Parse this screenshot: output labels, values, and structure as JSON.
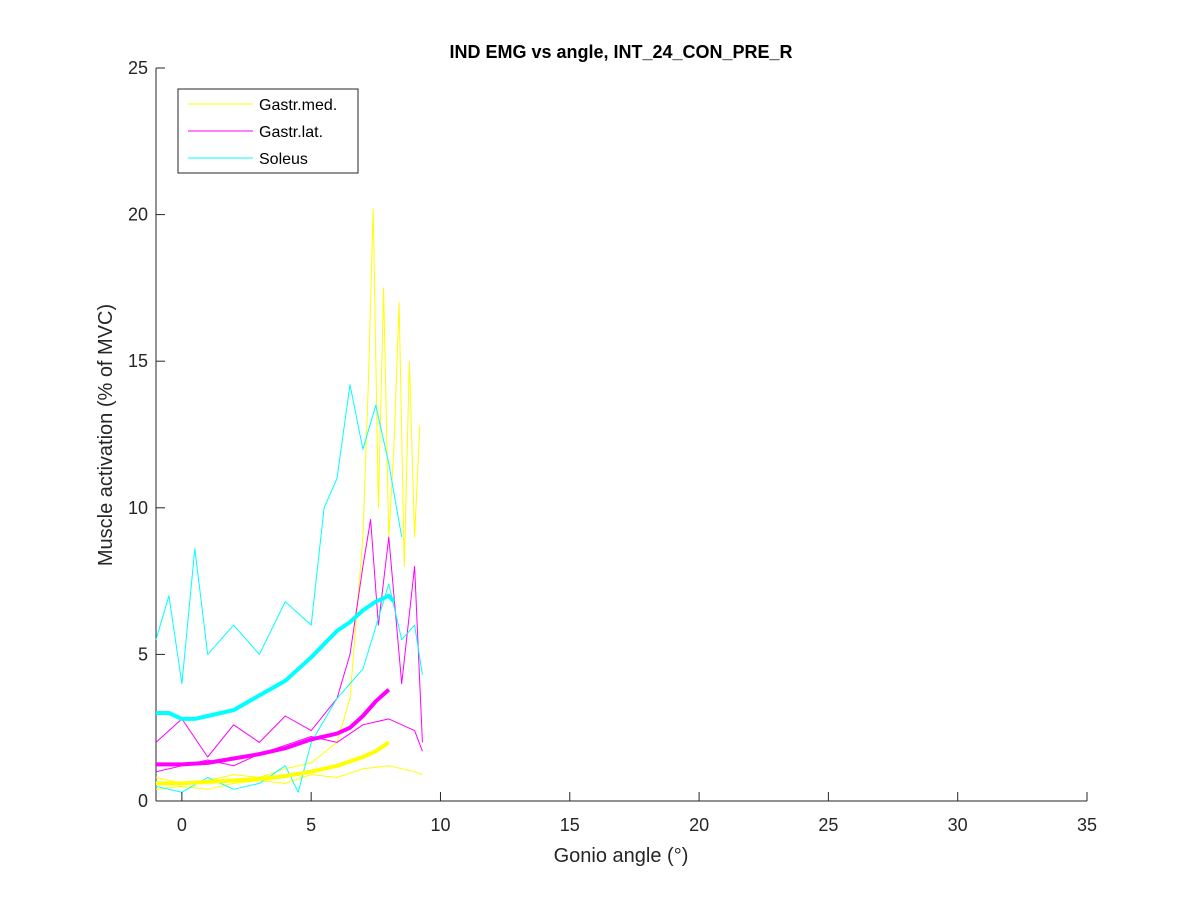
{
  "chart_data": {
    "type": "line",
    "title": "IND EMG vs angle, INT_24_CON_PRE_R",
    "xlabel": "Gonio angle (°)",
    "ylabel": "Muscle activation (% of MVC)",
    "xlim": [
      -1,
      35
    ],
    "ylim": [
      0,
      25
    ],
    "xticks": [
      0,
      5,
      10,
      15,
      20,
      25,
      30,
      35
    ],
    "yticks": [
      0,
      5,
      10,
      15,
      20,
      25
    ],
    "grid": false,
    "legend_position": "top-left",
    "legend": [
      {
        "name": "Gastr.med.",
        "color": "#ffff00"
      },
      {
        "name": "Gastr.lat.",
        "color": "#ff00ff"
      },
      {
        "name": "Soleus",
        "color": "#00ffff"
      }
    ],
    "series": [
      {
        "name": "Gastr.med.",
        "color": "#ffff00",
        "kind": "mean",
        "x": [
          -1,
          0,
          1,
          2,
          3,
          4,
          5,
          6,
          6.5,
          7,
          7.5,
          8
        ],
        "y": [
          0.6,
          0.6,
          0.65,
          0.7,
          0.75,
          0.85,
          1.0,
          1.2,
          1.35,
          1.5,
          1.7,
          2.0
        ]
      },
      {
        "name": "Gastr.lat.",
        "color": "#ff00ff",
        "kind": "mean",
        "x": [
          -1,
          0,
          1,
          2,
          3,
          4,
          5,
          6,
          6.5,
          7,
          7.5,
          8
        ],
        "y": [
          1.25,
          1.25,
          1.3,
          1.45,
          1.6,
          1.8,
          2.1,
          2.3,
          2.5,
          2.9,
          3.4,
          3.8
        ]
      },
      {
        "name": "Soleus",
        "color": "#00ffff",
        "kind": "mean",
        "x": [
          -1,
          -0.5,
          0,
          0.5,
          1,
          2,
          3,
          4,
          5,
          6,
          6.5,
          7,
          7.5,
          8,
          8.2
        ],
        "y": [
          3.0,
          3.0,
          2.8,
          2.8,
          2.9,
          3.1,
          3.6,
          4.1,
          4.9,
          5.8,
          6.1,
          6.5,
          6.8,
          7.0,
          6.8
        ]
      },
      {
        "name": "Gastr.med.",
        "color": "#ffff00",
        "kind": "trial",
        "x": [
          -1,
          0,
          1,
          2,
          3,
          4,
          5,
          6,
          6.5,
          7,
          7.2,
          7.4,
          7.6,
          7.8,
          8,
          8.2,
          8.4,
          8.6,
          8.8,
          9,
          9.2
        ],
        "y": [
          0.8,
          0.6,
          0.7,
          0.9,
          0.8,
          1.1,
          1.3,
          2.0,
          3.5,
          9.0,
          14.0,
          20.2,
          10.0,
          17.5,
          9.0,
          12.0,
          17.0,
          8.0,
          15.0,
          9.0,
          12.8
        ]
      },
      {
        "name": "Gastr.med.",
        "color": "#ffff00",
        "kind": "trial",
        "x": [
          -1,
          0,
          1,
          2,
          3,
          4,
          5,
          6,
          7,
          8,
          9,
          9.3
        ],
        "y": [
          0.4,
          0.5,
          0.4,
          0.6,
          0.7,
          0.6,
          0.9,
          0.8,
          1.1,
          1.2,
          1.0,
          0.9
        ]
      },
      {
        "name": "Gastr.lat.",
        "color": "#ff00ff",
        "kind": "trial",
        "x": [
          -1,
          0,
          1,
          2,
          3,
          4,
          5,
          6,
          6.5,
          7,
          7.3,
          7.6,
          8,
          8.5,
          9,
          9.3
        ],
        "y": [
          2.0,
          2.8,
          1.5,
          2.6,
          2.0,
          2.9,
          2.4,
          3.5,
          5.0,
          8.0,
          9.6,
          6.0,
          9.0,
          4.0,
          8.0,
          2.0
        ]
      },
      {
        "name": "Gastr.lat.",
        "color": "#ff00ff",
        "kind": "trial",
        "x": [
          -1,
          0,
          1,
          2,
          3,
          4,
          5,
          6,
          7,
          8,
          9,
          9.3
        ],
        "y": [
          1.0,
          1.2,
          1.4,
          1.2,
          1.6,
          1.9,
          2.2,
          2.0,
          2.6,
          2.8,
          2.4,
          1.7
        ]
      },
      {
        "name": "Soleus",
        "color": "#00ffff",
        "kind": "trial",
        "x": [
          -1,
          -0.5,
          0,
          0.5,
          1,
          2,
          3,
          4,
          5,
          5.5,
          6,
          6.5,
          7,
          7.5,
          8,
          8.5
        ],
        "y": [
          5.5,
          7.0,
          4.0,
          8.6,
          5.0,
          6.0,
          5.0,
          6.8,
          6.0,
          10.0,
          11.0,
          14.2,
          12.0,
          13.5,
          11.5,
          9.0
        ]
      },
      {
        "name": "Soleus",
        "color": "#00ffff",
        "kind": "trial",
        "x": [
          -1,
          0,
          1,
          2,
          3,
          4,
          4.5,
          5,
          6,
          7,
          8,
          8.5,
          9,
          9.3
        ],
        "y": [
          0.5,
          0.3,
          0.8,
          0.4,
          0.6,
          1.2,
          0.3,
          2.0,
          3.5,
          4.5,
          7.4,
          5.5,
          6.0,
          4.3
        ]
      }
    ]
  }
}
